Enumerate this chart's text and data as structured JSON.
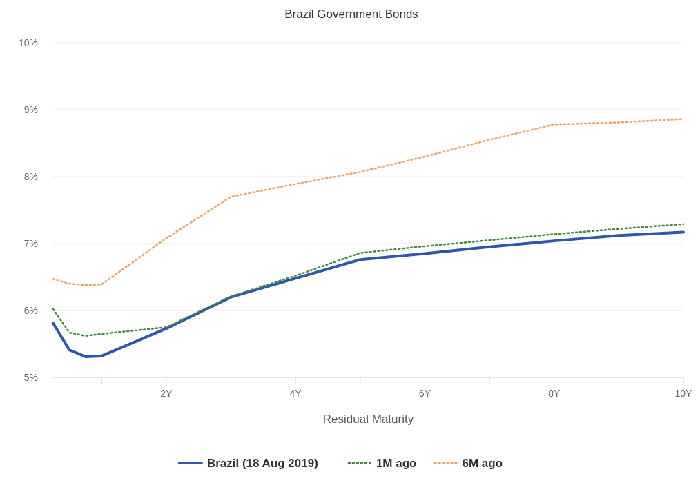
{
  "chart_data": {
    "type": "line",
    "title": "Brazil Government Bonds",
    "xlabel": "Residual Maturity",
    "x": [
      0.25,
      0.5,
      0.75,
      1,
      2,
      3,
      4,
      5,
      6,
      7,
      8,
      9,
      10
    ],
    "xlim": [
      0.25,
      10
    ],
    "xticks": [
      {
        "value": 1,
        "label": null
      },
      {
        "value": 2,
        "label": "2Y"
      },
      {
        "value": 3,
        "label": null
      },
      {
        "value": 4,
        "label": "4Y"
      },
      {
        "value": 5,
        "label": null
      },
      {
        "value": 6,
        "label": "6Y"
      },
      {
        "value": 7,
        "label": null
      },
      {
        "value": 8,
        "label": "8Y"
      },
      {
        "value": 9,
        "label": null
      },
      {
        "value": 10,
        "label": "10Y"
      }
    ],
    "ylim": [
      5,
      10
    ],
    "yticks": [
      {
        "value": 5,
        "label": "5%"
      },
      {
        "value": 6,
        "label": "6%"
      },
      {
        "value": 7,
        "label": "7%"
      },
      {
        "value": 8,
        "label": "8%"
      },
      {
        "value": 9,
        "label": "9%"
      },
      {
        "value": 10,
        "label": "10%"
      }
    ],
    "grid": "y",
    "legend": "bottom",
    "marker": "none",
    "series": [
      {
        "name": "Brazil (18 Aug 2019)",
        "color": "#2f56a8",
        "line_style": "solid",
        "values": [
          5.81,
          5.41,
          5.31,
          5.32,
          5.73,
          6.2,
          6.48,
          6.76,
          6.85,
          6.95,
          7.04,
          7.12,
          7.17
        ]
      },
      {
        "name": "1M ago",
        "color": "#3f8a3f",
        "line_style": "dotted",
        "values": [
          6.02,
          5.67,
          5.62,
          5.65,
          5.75,
          6.21,
          6.52,
          6.86,
          6.96,
          7.05,
          7.14,
          7.22,
          7.29
        ]
      },
      {
        "name": "6M ago",
        "color": "#f0a060",
        "line_style": "dotted",
        "values": [
          6.47,
          6.4,
          6.38,
          6.39,
          7.08,
          7.7,
          7.89,
          8.07,
          8.3,
          8.55,
          8.78,
          8.81,
          8.86
        ]
      }
    ]
  }
}
